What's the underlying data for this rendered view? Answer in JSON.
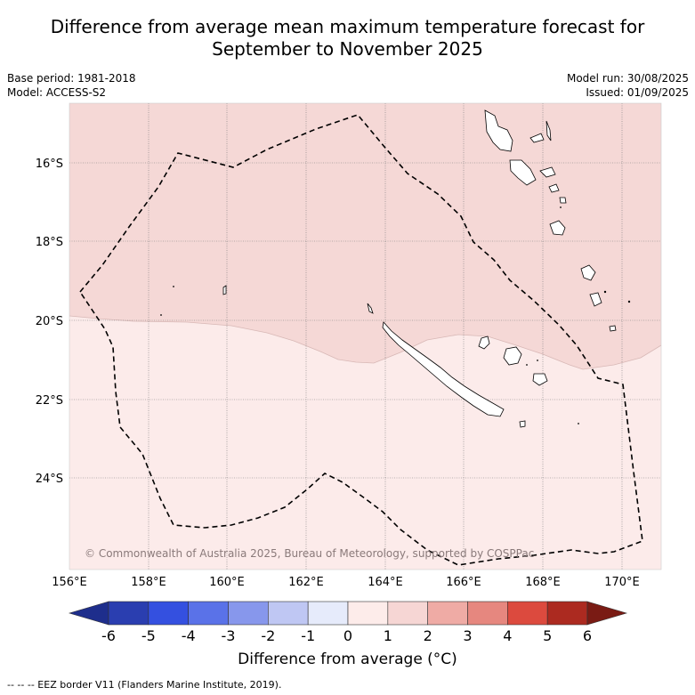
{
  "title_line1": "Difference from average mean maximum temperature forecast for",
  "title_line2": "September to November 2025",
  "base_period": "Base period: 1981-2018",
  "model": "Model: ACCESS-S2",
  "model_run": "Model run: 30/08/2025",
  "issued": "Issued: 01/09/2025",
  "copyright": "© Commonwealth of Australia 2025, Bureau of Meteorology, supported by COSPPac",
  "lat_labels": [
    "16°S",
    "18°S",
    "20°S",
    "22°S",
    "24°S"
  ],
  "lon_labels": [
    "156°E",
    "158°E",
    "160°E",
    "162°E",
    "164°E",
    "166°E",
    "168°E",
    "170°E"
  ],
  "colorbar": {
    "ticks": [
      "-6",
      "-5",
      "-4",
      "-3",
      "-2",
      "-1",
      "0",
      "1",
      "2",
      "3",
      "4",
      "5",
      "6"
    ],
    "colors": [
      "#1e2e8c",
      "#2a3eb0",
      "#3450e0",
      "#5a72e8",
      "#8797ec",
      "#bfc7f3",
      "#e6ebfb",
      "#fdecea",
      "#f6d6d4",
      "#efaba5",
      "#e6877f",
      "#dc4a3e",
      "#ac2a20",
      "#7a1b14"
    ],
    "title": "Difference from average (°C)"
  },
  "forecast_fill": {
    "north_category": "1 to 2",
    "north_color": "#f5d8d6",
    "south_category": "0 to 1",
    "south_color": "#fcebea"
  },
  "footnote": "-- -- -- EEZ border V11 (Flanders Marine Institute, 2019)."
}
